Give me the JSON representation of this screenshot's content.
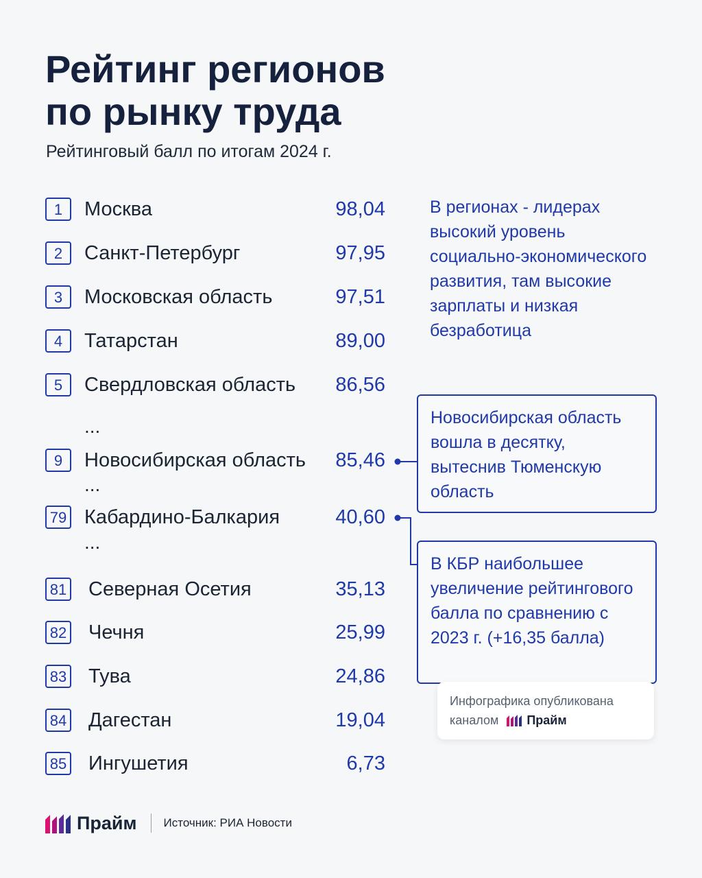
{
  "title": {
    "line1": "Рейтинг регионов",
    "line2": "по рынку труда"
  },
  "subtitle": "Рейтинговый балл по итогам 2024 г.",
  "ratings": [
    {
      "rank": "1",
      "region": "Москва",
      "score": "98,04"
    },
    {
      "rank": "2",
      "region": "Санкт-Петербург",
      "score": "97,95"
    },
    {
      "rank": "3",
      "region": "Московская область",
      "score": "97,51"
    },
    {
      "rank": "4",
      "region": "Татарстан",
      "score": "89,00"
    },
    {
      "rank": "5",
      "region": "Свердловская область",
      "score": "86,56"
    },
    {
      "rank": "9",
      "region": "Новосибирская область",
      "score": "85,46"
    },
    {
      "rank": "79",
      "region": "Кабардино-Балкария",
      "score": "40,60"
    },
    {
      "rank": "81",
      "region": "Северная Осетия",
      "score": "35,13"
    },
    {
      "rank": "82",
      "region": "Чечня",
      "score": "25,99"
    },
    {
      "rank": "83",
      "region": "Тува",
      "score": "24,86"
    },
    {
      "rank": "84",
      "region": "Дагестан",
      "score": "19,04"
    },
    {
      "rank": "85",
      "region": "Ингушетия",
      "score": "6,73"
    }
  ],
  "ellipsis": "...",
  "note_leaders": "В регионах - лидерах высокий уровень социально-экономического развития, там высокие зарплаты и низкая безработица",
  "callout_novosibirsk": "Новосибирская область вошла в десятку, вытеснив Тюменскую область",
  "callout_kbr": "В КБР наибольшее увеличение рейтингового балла по сравнению с 2023 г. (+16,35 балла)",
  "badge": {
    "line1": "Инфографика опубликована",
    "line2": "каналом",
    "brand": "Прайм"
  },
  "footer": {
    "brand": "Прайм",
    "source": "Источник: РИА Новости"
  },
  "colors": {
    "accent": "#1f3aa8",
    "title": "#16213d",
    "brand_pink": "#e0106e",
    "brand_purple": "#5b2b9a",
    "background": "#f6f7f9"
  }
}
